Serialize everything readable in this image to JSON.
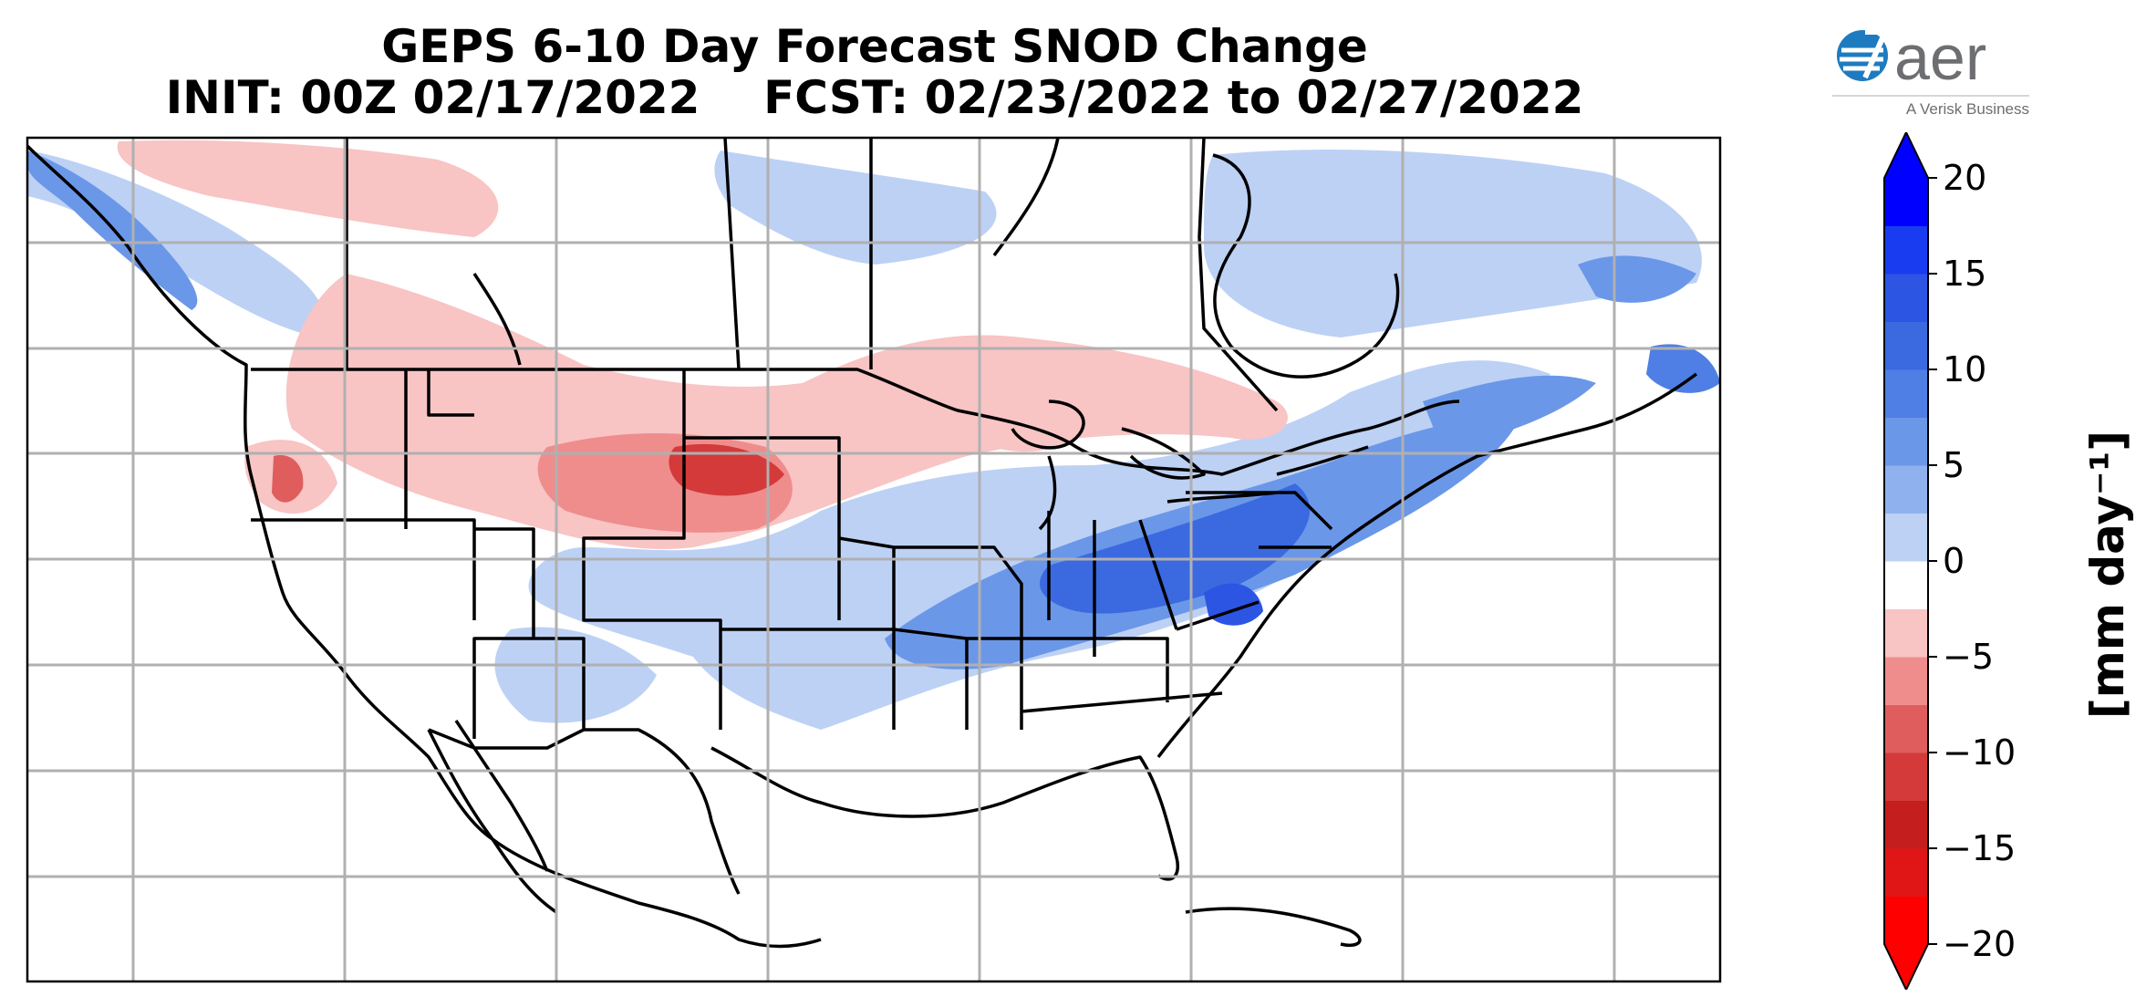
{
  "title": {
    "line1": "GEPS 6-10 Day Forecast SNOD Change",
    "line2": "INIT: 00Z 02/17/2022    FCST: 02/23/2022 to 02/27/2022"
  },
  "logo": {
    "brand": "aer",
    "tagline": "A Verisk Business",
    "colors": {
      "brand_blue": "#1f7bbf",
      "text_gray": "#6d6e71"
    }
  },
  "colorbar": {
    "label": "[mm day⁻¹]",
    "ticks": [
      "−20",
      "−15",
      "−10",
      "−5",
      "0",
      "5",
      "10",
      "15",
      "20"
    ],
    "levels": [
      -20,
      -17.5,
      -15,
      -12.5,
      -10,
      -7.5,
      -5,
      -2.5,
      2.5,
      5,
      7.5,
      10,
      12.5,
      15,
      17.5,
      20
    ],
    "colors": [
      "#ff0000",
      "#e01515",
      "#c51e1e",
      "#d43a3a",
      "#e05d5d",
      "#ef8d8d",
      "#f8c4c4",
      "#ffffff",
      "#bdd1f5",
      "#8fb2ee",
      "#6b97e8",
      "#4f7fe4",
      "#3b69e0",
      "#2c55e4",
      "#1a3cf0",
      "#0000ff"
    ],
    "extend": "both"
  },
  "map": {
    "projection": "plate-carree",
    "lon_range": [
      -150,
      -50
    ],
    "lat_range": [
      10,
      60
    ],
    "gridlines": true,
    "grid_color": "#b0b0b0",
    "features": [
      "coastlines",
      "country-borders",
      "state-province-borders"
    ]
  }
}
